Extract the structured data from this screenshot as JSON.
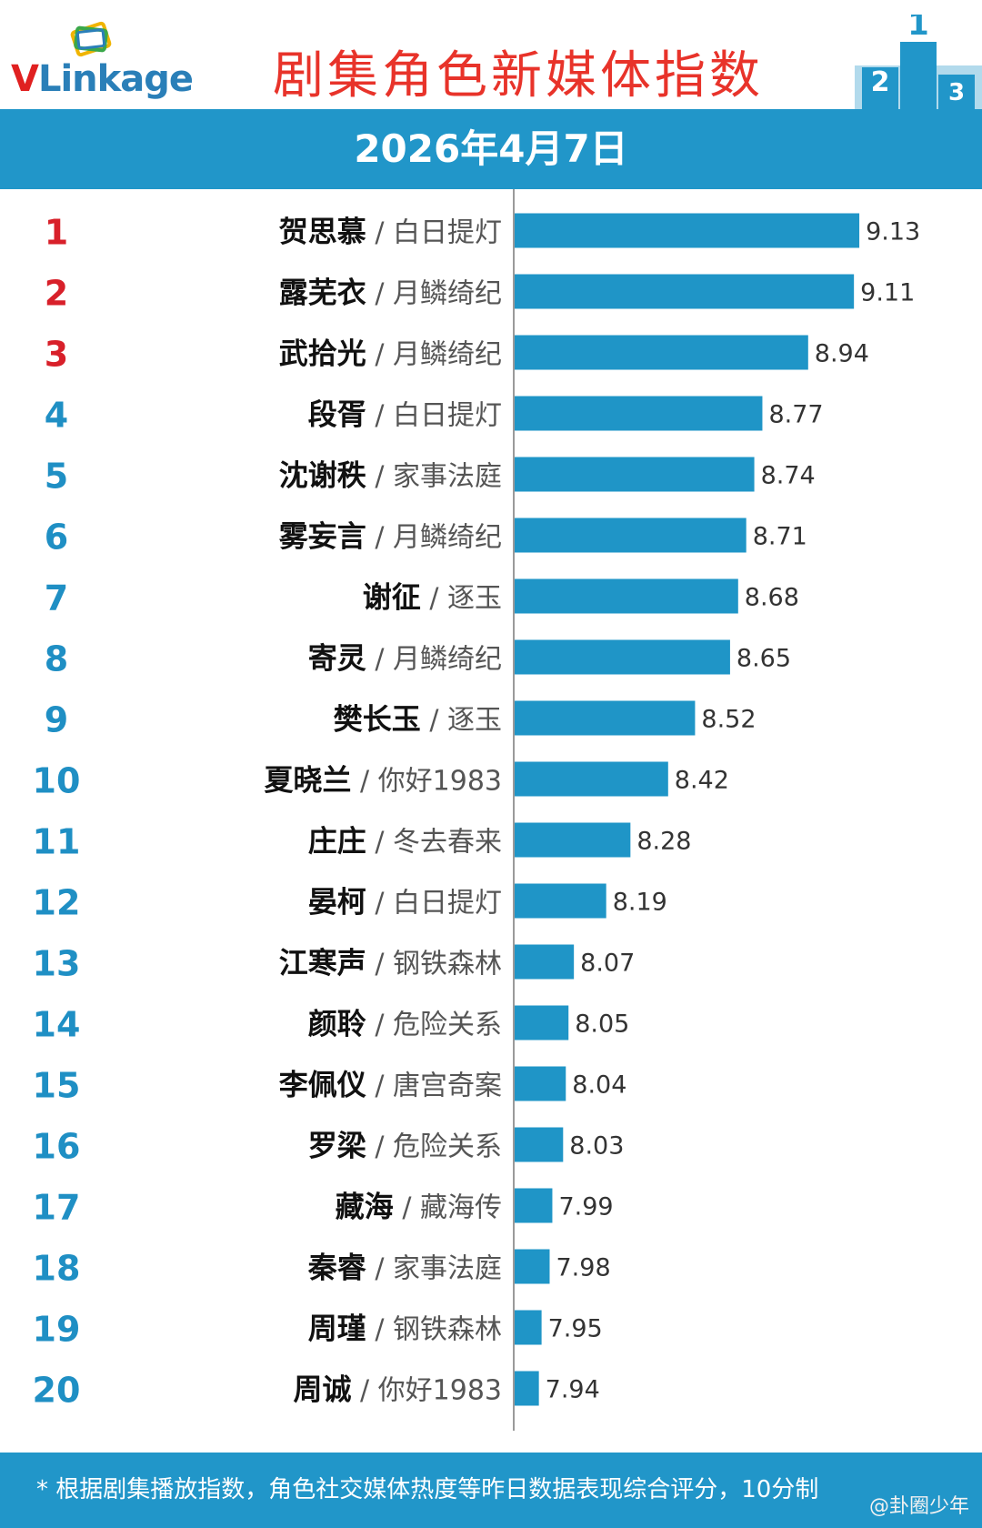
{
  "header": {
    "logo_text_v": "V",
    "logo_text_rest": "Linkage",
    "title": "剧集角色新媒体指数",
    "podium_icon": "podium-icon"
  },
  "date": "2026年4月7日",
  "colors": {
    "bar": "#1f95c7",
    "top_rank": "#d8202a",
    "rank": "#1f8fc4",
    "band": "#2196c9"
  },
  "chart_data": {
    "type": "bar",
    "orientation": "horizontal",
    "title": "剧集角色新媒体指数",
    "categories": [
      {
        "rank": "1",
        "name": "贺思慕",
        "show": "白日提灯"
      },
      {
        "rank": "2",
        "name": "露芜衣",
        "show": "月鳞绮纪"
      },
      {
        "rank": "3",
        "name": "武拾光",
        "show": "月鳞绮纪"
      },
      {
        "rank": "4",
        "name": "段胥",
        "show": "白日提灯"
      },
      {
        "rank": "5",
        "name": "沈谢秩",
        "show": "家事法庭"
      },
      {
        "rank": "6",
        "name": "雾妄言",
        "show": "月鳞绮纪"
      },
      {
        "rank": "7",
        "name": "谢征",
        "show": "逐玉"
      },
      {
        "rank": "8",
        "name": "寄灵",
        "show": "月鳞绮纪"
      },
      {
        "rank": "9",
        "name": "樊长玉",
        "show": "逐玉"
      },
      {
        "rank": "10",
        "name": "夏晓兰",
        "show": "你好1983"
      },
      {
        "rank": "11",
        "name": "庄庄",
        "show": "冬去春来"
      },
      {
        "rank": "12",
        "name": "晏柯",
        "show": "白日提灯"
      },
      {
        "rank": "13",
        "name": "江寒声",
        "show": "钢铁森林"
      },
      {
        "rank": "14",
        "name": "颜聆",
        "show": "危险关系"
      },
      {
        "rank": "15",
        "name": "李佩仪",
        "show": "唐宫奇案"
      },
      {
        "rank": "16",
        "name": "罗梁",
        "show": "危险关系"
      },
      {
        "rank": "17",
        "name": "藏海",
        "show": "藏海传"
      },
      {
        "rank": "18",
        "name": "秦睿",
        "show": "家事法庭"
      },
      {
        "rank": "19",
        "name": "周瑾",
        "show": "钢铁森林"
      },
      {
        "rank": "20",
        "name": "周诚",
        "show": "你好1983"
      }
    ],
    "values": [
      9.13,
      9.11,
      8.94,
      8.77,
      8.74,
      8.71,
      8.68,
      8.65,
      8.52,
      8.42,
      8.28,
      8.19,
      8.07,
      8.05,
      8.04,
      8.03,
      7.99,
      7.98,
      7.95,
      7.94
    ],
    "value_labels": [
      "9.13",
      "9.11",
      "8.94",
      "8.77",
      "8.74",
      "8.71",
      "8.68",
      "8.65",
      "8.52",
      "8.42",
      "8.28",
      "8.19",
      "8.07",
      "8.05",
      "8.04",
      "8.03",
      "7.99",
      "7.98",
      "7.95",
      "7.94"
    ],
    "xlim": [
      7.85,
      9.15
    ],
    "grid": false,
    "legend": "none"
  },
  "footer": {
    "note": "* 根据剧集播放指数，角色社交媒体热度等昨日数据表现综合评分，10分制",
    "watermark": "@卦圈少年"
  }
}
